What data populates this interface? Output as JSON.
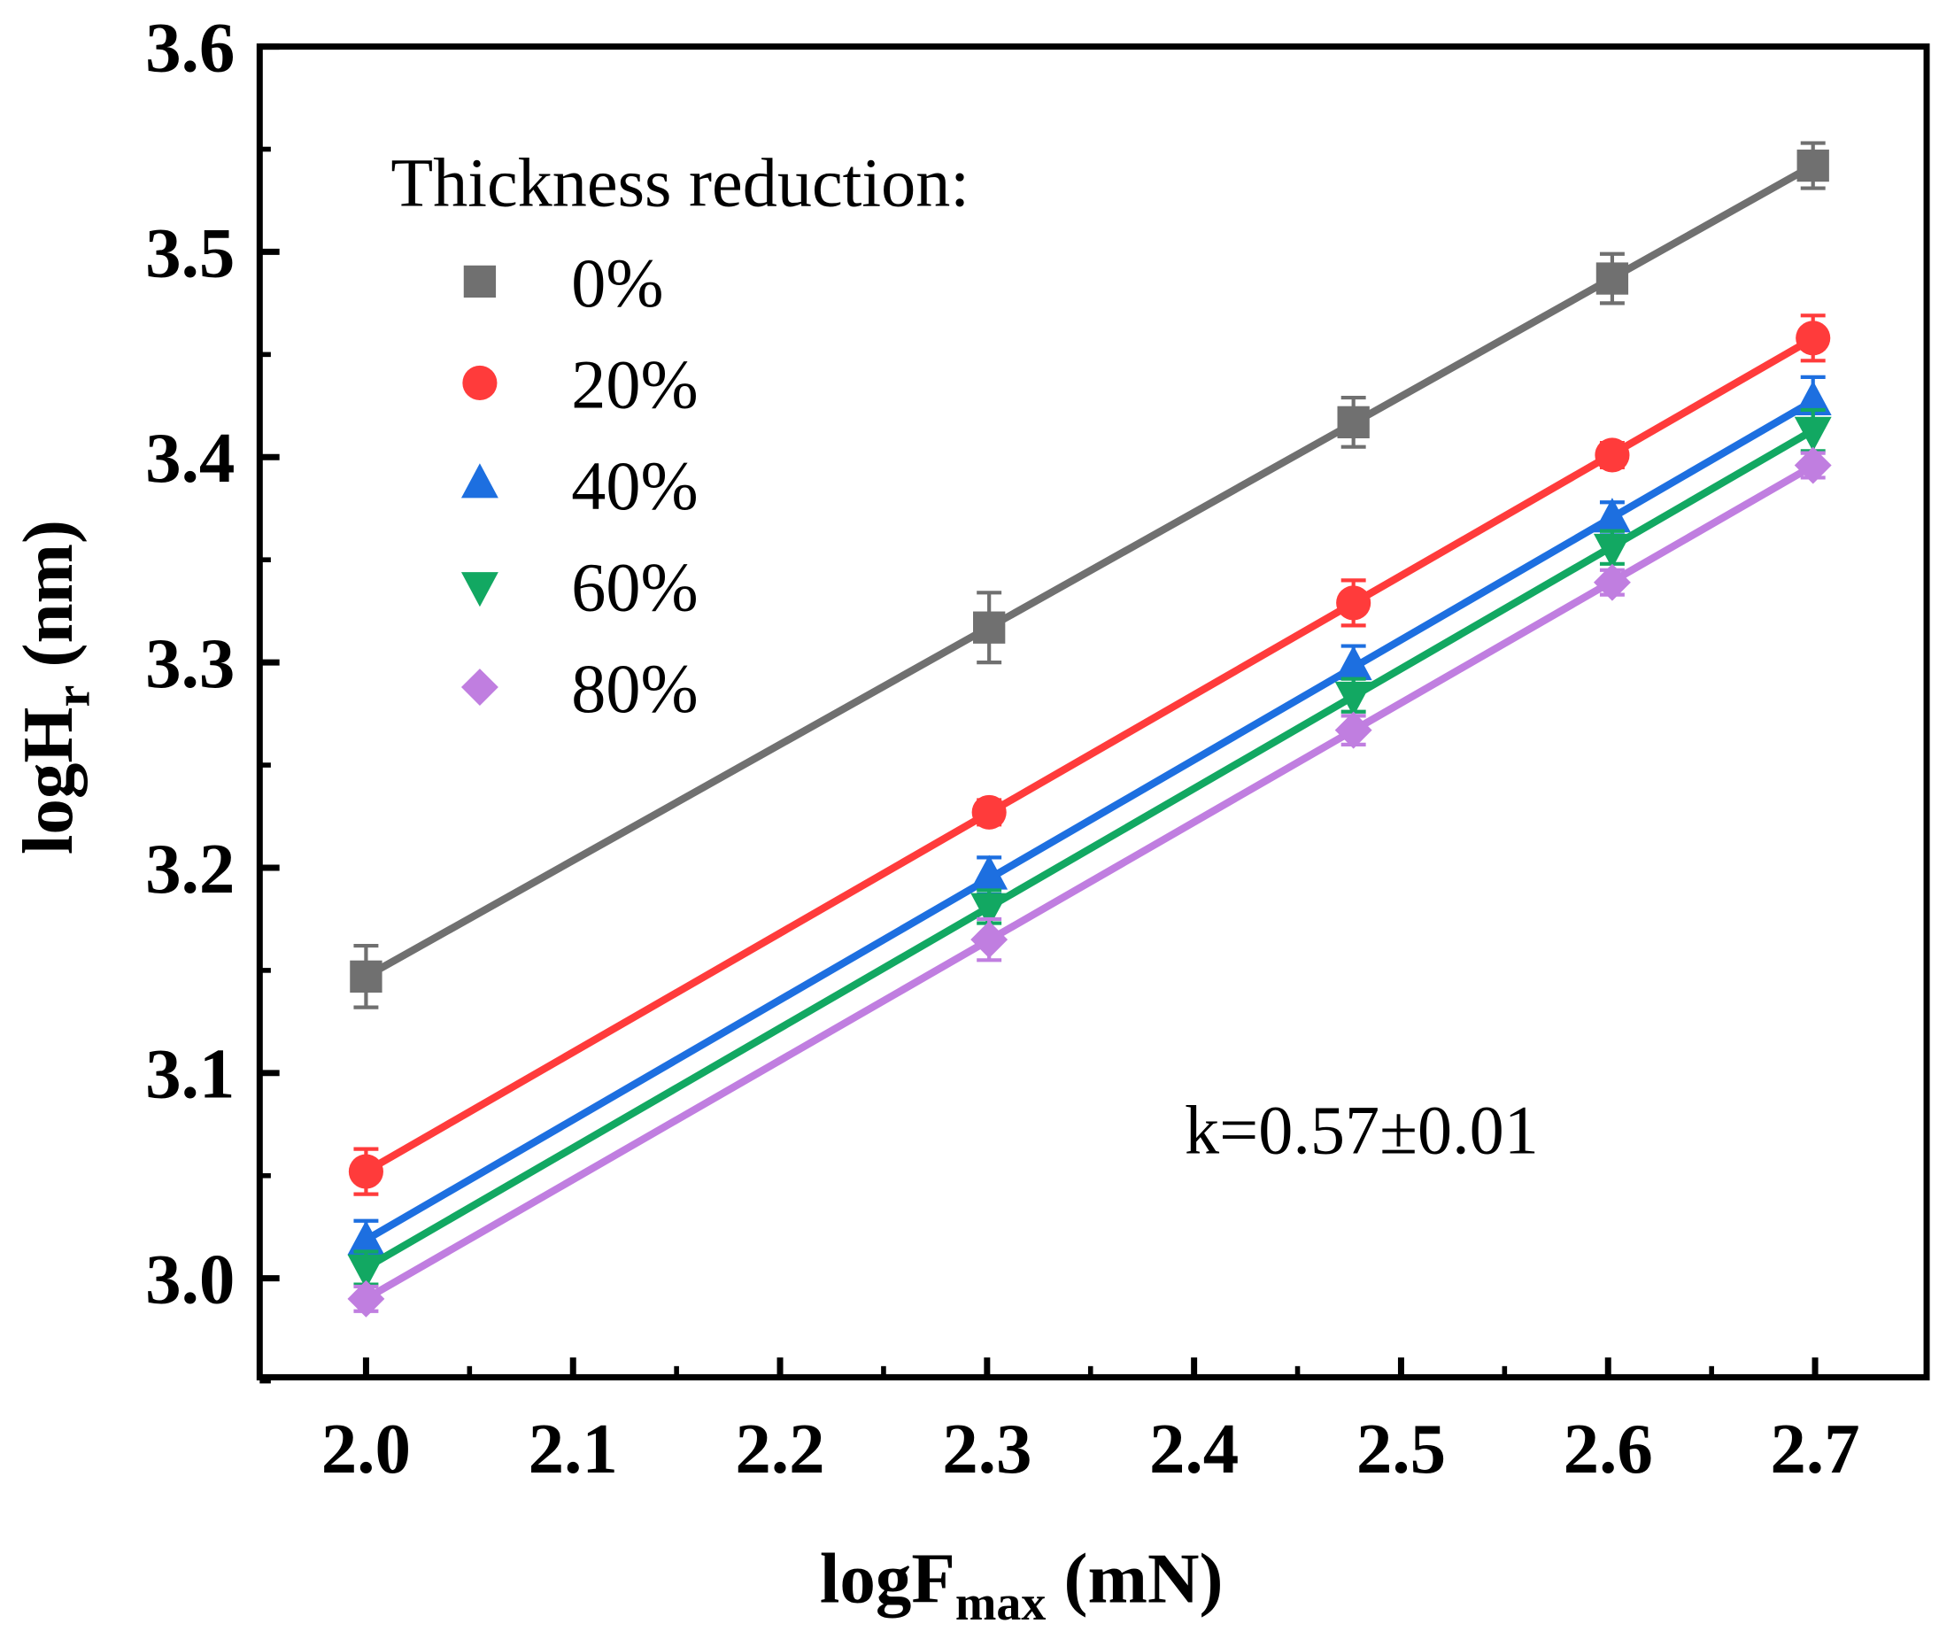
{
  "chart_data": {
    "type": "scatter",
    "xlabel": "logF",
    "xlabel_sub": "max",
    "xlabel_unit": " (mN)",
    "ylabel": "logH",
    "ylabel_sub": "r",
    "ylabel_unit": " (nm)",
    "xlim": [
      1.95,
      2.75
    ],
    "ylim": [
      2.95,
      3.6
    ],
    "xticks": [
      2.0,
      2.1,
      2.2,
      2.3,
      2.4,
      2.5,
      2.6,
      2.7
    ],
    "xtick_labels": [
      "2.0",
      "2.1",
      "2.2",
      "2.3",
      "2.4",
      "2.5",
      "2.6",
      "2.7"
    ],
    "yticks": [
      3.0,
      3.1,
      3.2,
      3.3,
      3.4,
      3.5,
      3.6
    ],
    "ytick_labels": [
      "3.0",
      "3.1",
      "3.2",
      "3.3",
      "3.4",
      "3.5",
      "3.6"
    ],
    "legend_title": "Thickness reduction:",
    "legend_position": "top-left",
    "annotation": "k=0.57±0.01",
    "x": [
      2.0,
      2.301,
      2.477,
      2.602,
      2.699
    ],
    "series": [
      {
        "name": "0%",
        "marker": "square",
        "color": "#707070",
        "values": [
          3.147,
          3.317,
          3.417,
          3.487,
          3.542
        ],
        "errors": [
          0.015,
          0.017,
          0.012,
          0.012,
          0.011
        ]
      },
      {
        "name": "20%",
        "marker": "circle",
        "color": "#FF3B3B",
        "values": [
          3.052,
          3.227,
          3.329,
          3.401,
          3.458
        ],
        "errors": [
          0.011,
          0.006,
          0.011,
          0.006,
          0.011
        ]
      },
      {
        "name": "40%",
        "marker": "triangle-up",
        "color": "#1D6FE0",
        "values": [
          3.018,
          3.196,
          3.298,
          3.37,
          3.427
        ],
        "errors": [
          0.01,
          0.009,
          0.01,
          0.008,
          0.012
        ]
      },
      {
        "name": "60%",
        "marker": "triangle-down",
        "color": "#12A862",
        "values": [
          3.005,
          3.181,
          3.284,
          3.356,
          3.413
        ],
        "errors": [
          0.008,
          0.008,
          0.008,
          0.008,
          0.01
        ]
      },
      {
        "name": "80%",
        "marker": "diamond",
        "color": "#C07EE0",
        "values": [
          2.99,
          3.165,
          3.267,
          3.339,
          3.396
        ],
        "errors": [
          0.006,
          0.01,
          0.007,
          0.006,
          0.006
        ]
      }
    ]
  }
}
